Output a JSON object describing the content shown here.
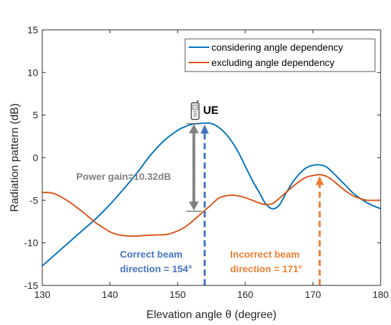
{
  "chart_data": {
    "type": "line",
    "xlabel": "Elevation angle θ (degree)",
    "ylabel": "Radiation pattern (dB)",
    "xlim": [
      130,
      180
    ],
    "ylim": [
      -15,
      15
    ],
    "xticks": [
      "130",
      "140",
      "150",
      "160",
      "170",
      "180"
    ],
    "yticks": [
      "15",
      "10",
      "5",
      "0",
      "-5",
      "-10",
      "-15"
    ],
    "legend_position": "top-right",
    "series": [
      {
        "name": "considering angle dependency",
        "color": "#0072BD",
        "x": [
          130,
          132,
          134,
          136,
          138,
          140,
          142,
          144,
          146,
          148,
          150,
          151,
          152,
          153,
          154,
          155,
          156,
          157,
          158,
          159,
          160,
          161,
          162,
          163,
          164,
          165,
          166,
          167,
          168,
          169,
          170,
          171,
          172,
          173,
          174,
          175,
          176,
          178,
          180
        ],
        "y": [
          -12.7,
          -11.3,
          -9.9,
          -8.5,
          -7.1,
          -5.5,
          -3.7,
          -1.8,
          0.3,
          2.0,
          3.2,
          3.6,
          3.9,
          4.0,
          4.05,
          4.0,
          3.6,
          2.9,
          1.9,
          0.6,
          -1.0,
          -2.6,
          -4.0,
          -5.4,
          -6.0,
          -5.6,
          -4.2,
          -2.9,
          -1.9,
          -1.2,
          -0.9,
          -0.85,
          -1.1,
          -1.8,
          -2.6,
          -3.4,
          -4.2,
          -5.3,
          -6.0
        ]
      },
      {
        "name": "excluding angle dependency",
        "color": "#D95319",
        "x": [
          130,
          131,
          132,
          134,
          136,
          138,
          140,
          141,
          142,
          143,
          144,
          146,
          148,
          149,
          150,
          151,
          152,
          153,
          154,
          155,
          156,
          157,
          158,
          159,
          160,
          161,
          162,
          163,
          164,
          165,
          166,
          167,
          168,
          169,
          170,
          171,
          172,
          173,
          174,
          175,
          176,
          177,
          178,
          180
        ],
        "y": [
          -4.1,
          -4.1,
          -4.3,
          -5.2,
          -6.4,
          -7.7,
          -8.7,
          -9.0,
          -9.15,
          -9.2,
          -9.2,
          -9.1,
          -9.05,
          -8.9,
          -8.6,
          -8.2,
          -7.6,
          -6.9,
          -6.2,
          -5.5,
          -4.8,
          -4.5,
          -4.4,
          -4.5,
          -4.7,
          -5.0,
          -5.3,
          -5.5,
          -5.4,
          -4.8,
          -4.1,
          -3.4,
          -2.8,
          -2.3,
          -2.1,
          -2.0,
          -2.2,
          -2.7,
          -3.4,
          -4.0,
          -4.5,
          -4.8,
          -5.0,
          -5.0
        ]
      }
    ],
    "annotations": {
      "ue_label": "UE",
      "power_gain": "Power gain=10.32dB",
      "power_gain_arrow": {
        "x": 152.4,
        "y_top": 4.0,
        "y_bottom": -6.3,
        "color": "#808080"
      },
      "correct_beam": {
        "line1": "Correct beam",
        "line2": "direction = 154°",
        "x": 154,
        "y_top": 4.05,
        "color": "#4472C4"
      },
      "incorrect_beam": {
        "line1": "Incorrect beam",
        "line2": "direction = 171°",
        "x": 171,
        "y_top": -2.0,
        "color": "#ED7D31"
      }
    }
  }
}
